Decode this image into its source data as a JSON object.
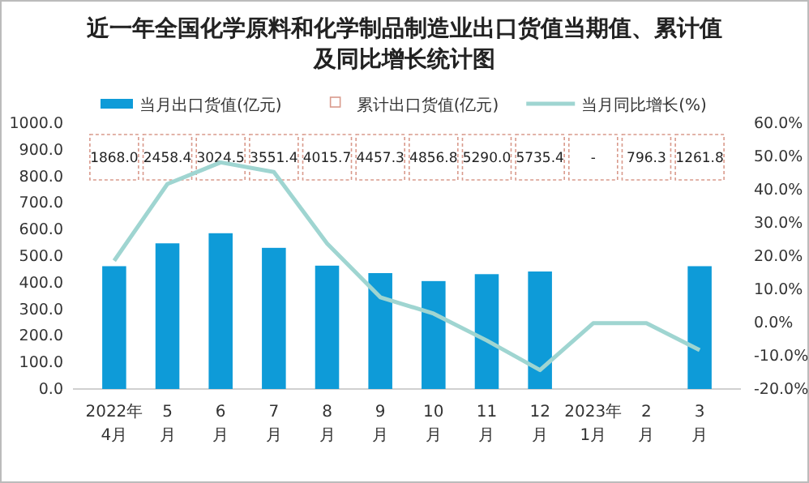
{
  "chart_data": {
    "type": "bar",
    "title": "近一年全国化学原料和化学制品制造业出口货值当期值、累计值及同比增长统计图",
    "categories": [
      "2022年\n4月",
      "5\n月",
      "6\n月",
      "7\n月",
      "8\n月",
      "9\n月",
      "10\n月",
      "11\n月",
      "12\n月",
      "2023年\n1月",
      "2\n月",
      "3\n月"
    ],
    "series": [
      {
        "name": "当月出口货值(亿元)",
        "color": "#0e9bd8",
        "values": [
          462,
          548,
          586,
          531,
          464,
          436,
          406,
          432,
          442,
          null,
          null,
          462
        ]
      },
      {
        "name": "累计出口货值(亿元)",
        "type": "scatter",
        "color": "#d99a8c",
        "values": [
          null,
          null,
          null,
          null,
          null,
          null,
          null,
          null,
          null,
          null,
          null,
          null
        ],
        "value_labels": [
          "1868.0",
          "2458.4",
          "3024.5",
          "3551.4",
          "4015.7",
          "4457.3",
          "4856.8",
          "5290.0",
          "5735.4",
          "-",
          "796.3",
          "1261.8"
        ]
      },
      {
        "name": "当月同比增长(%)",
        "type": "line",
        "axis": "y2",
        "color": "#9fd5d1",
        "values": [
          18.6,
          41.7,
          48.2,
          45.3,
          23.8,
          7.6,
          2.7,
          -5.4,
          -14.3,
          -0.2,
          -0.2,
          -8.3
        ]
      }
    ],
    "ylim": [
      0,
      1000
    ],
    "yticks": [
      {
        "value": 0,
        "label": "0.0"
      },
      {
        "value": 100,
        "label": "100.0"
      },
      {
        "value": 200,
        "label": "200.0"
      },
      {
        "value": 300,
        "label": "300.0"
      },
      {
        "value": 400,
        "label": "400.0"
      },
      {
        "value": 500,
        "label": "500.0"
      },
      {
        "value": 600,
        "label": "600.0"
      },
      {
        "value": 700,
        "label": "700.0"
      },
      {
        "value": 800,
        "label": "800.0"
      },
      {
        "value": 900,
        "label": "900.0"
      },
      {
        "value": 1000,
        "label": "1000.0"
      }
    ],
    "y2lim": [
      -20,
      60
    ],
    "y2ticks": [
      {
        "value": -20,
        "label": "-20.0%"
      },
      {
        "value": -10,
        "label": "-10.0%"
      },
      {
        "value": 0,
        "label": "0.0%"
      },
      {
        "value": 10,
        "label": "10.0%"
      },
      {
        "value": 20,
        "label": "20.0%"
      },
      {
        "value": 30,
        "label": "30.0%"
      },
      {
        "value": 40,
        "label": "40.0%"
      },
      {
        "value": 50,
        "label": "50.0%"
      },
      {
        "value": 60,
        "label": "60.0%"
      }
    ],
    "legend": "top",
    "grid": false
  }
}
